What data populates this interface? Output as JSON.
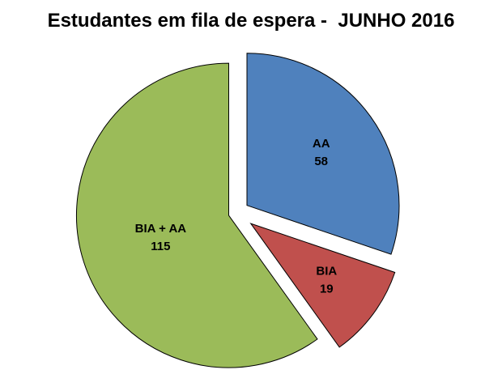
{
  "chart_data": {
    "type": "pie",
    "title": "Estudantes em fila de espera -  JUNHO 2016",
    "labels": [
      "AA",
      "BIA",
      "BIA + AA"
    ],
    "values": [
      58,
      19,
      115
    ],
    "colors": [
      "#4f81bd",
      "#c0504d",
      "#9bbb59"
    ],
    "slice_border_color": "#000000",
    "background_color": "#ffffff",
    "title_color": "#000000",
    "label_color": "#000000",
    "start_angle_deg": 0,
    "direction": "clockwise",
    "exploded": true,
    "legend": "none",
    "data_labels": "category-and-value-inside-slice"
  }
}
